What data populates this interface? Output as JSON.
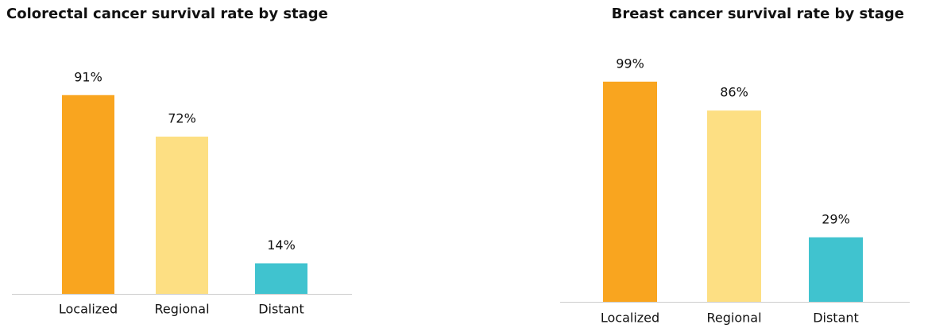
{
  "chart_data": [
    {
      "type": "bar",
      "title": "Colorectal cancer survival rate by stage",
      "categories": [
        "Localized",
        "Regional",
        "Distant"
      ],
      "values": [
        91,
        72,
        14
      ],
      "value_labels": [
        "91%",
        "72%",
        "14%"
      ],
      "colors": [
        "#f9a51f",
        "#fddf83",
        "#40c3cf"
      ]
    },
    {
      "type": "bar",
      "title": "Breast cancer survival rate by stage",
      "categories": [
        "Localized",
        "Regional",
        "Distant"
      ],
      "values": [
        99,
        86,
        29
      ],
      "value_labels": [
        "99%",
        "86%",
        "29%"
      ],
      "colors": [
        "#f9a51f",
        "#fddf83",
        "#40c3cf"
      ]
    }
  ]
}
